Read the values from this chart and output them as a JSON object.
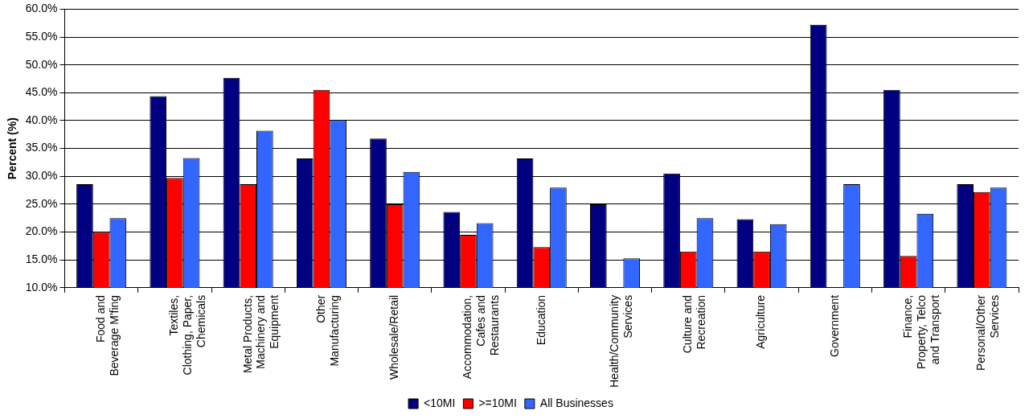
{
  "chart_data": {
    "type": "bar",
    "ylabel": "Percent (%)",
    "categories": [
      "Food and Beverage M'fing",
      "Textiles, Clothing, Paper, Chemicals",
      "Metal Products, Machinery and Equipment",
      "Other Manufacturing",
      "Wholesale/Retail",
      "Accommodation, Cafes and Restaurants",
      "Education",
      "Health/Community Services",
      "Culture and Recreation",
      "Agriculture",
      "Government",
      "Finance, Property, Telco and Transport",
      "Personal/Other Services"
    ],
    "series": [
      {
        "name": "<10MI",
        "color": "#000080",
        "values": [
          28.6,
          44.4,
          47.7,
          33.2,
          36.8,
          23.6,
          33.2,
          25.0,
          30.5,
          22.3,
          57.2,
          45.5,
          28.6
        ]
      },
      {
        "name": ">=10MI",
        "color": "#ff0000",
        "values": [
          20.0,
          29.7,
          28.6,
          45.5,
          25.0,
          19.5,
          17.3,
          null,
          16.5,
          16.5,
          null,
          15.7,
          27.2
        ]
      },
      {
        "name": "All Businesses",
        "color": "#3366ff",
        "values": [
          22.5,
          33.3,
          38.2,
          40.1,
          30.8,
          21.6,
          28.0,
          15.3,
          22.5,
          21.4,
          28.6,
          23.3,
          28.0
        ]
      }
    ],
    "ylim": [
      10,
      60
    ],
    "yticks": [
      {
        "value": 10,
        "label": "10.0%"
      },
      {
        "value": 15,
        "label": "15.0%"
      },
      {
        "value": 20,
        "label": "20.0%"
      },
      {
        "value": 25,
        "label": "25.0%"
      },
      {
        "value": 30,
        "label": "30.0%"
      },
      {
        "value": 35,
        "label": "35.0%"
      },
      {
        "value": 40,
        "label": "40.0%"
      },
      {
        "value": 45,
        "label": "45.0%"
      },
      {
        "value": 50,
        "label": "50.0%"
      },
      {
        "value": 55,
        "label": "55.0%"
      },
      {
        "value": 60,
        "label": "60.0%"
      }
    ],
    "grid": "y",
    "legend": "bottom"
  }
}
